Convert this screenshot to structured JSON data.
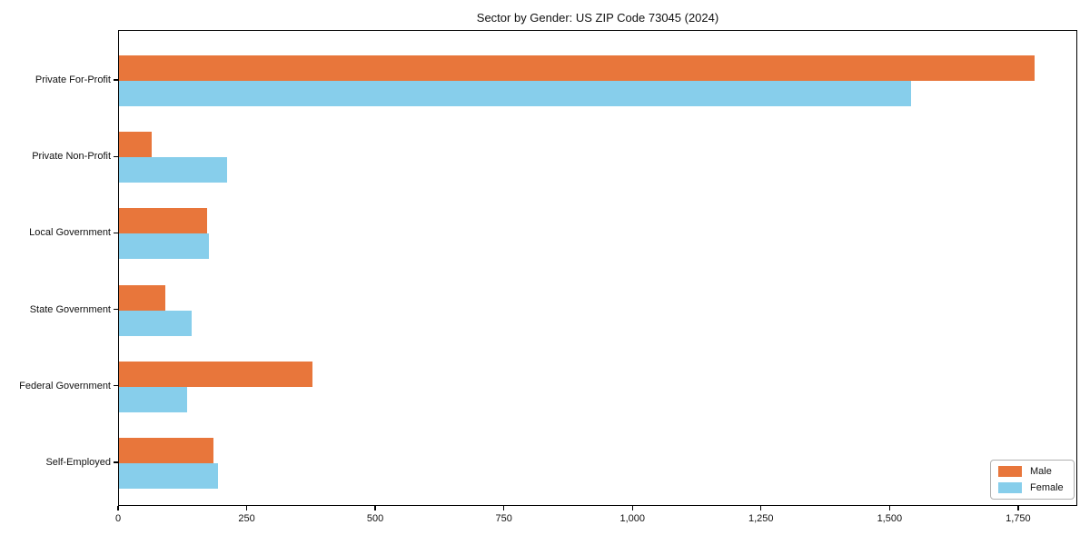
{
  "chart_data": {
    "type": "bar",
    "orientation": "horizontal",
    "title": "Sector by Gender: US ZIP Code 73045 (2024)",
    "xlabel": "",
    "ylabel": "",
    "categories": [
      "Private For-Profit",
      "Private Non-Profit",
      "Local Government",
      "State Government",
      "Federal Government",
      "Self-Employed"
    ],
    "series": [
      {
        "name": "Male",
        "color": "#e8763b",
        "values": [
          1780,
          64,
          171,
          90,
          376,
          184
        ]
      },
      {
        "name": "Female",
        "color": "#87ceeb",
        "values": [
          1540,
          210,
          175,
          141,
          133,
          193
        ]
      }
    ],
    "x_ticks": [
      0,
      250,
      500,
      750,
      1000,
      1250,
      1500,
      1750
    ],
    "x_tick_labels": [
      "0",
      "250",
      "500",
      "750",
      "1,000",
      "1,250",
      "1,500",
      "1,750"
    ],
    "xlim": [
      0,
      1865
    ],
    "grid": false,
    "legend_position": "lower right",
    "plot_border_color": "#000000",
    "background_color": "#ffffff"
  }
}
